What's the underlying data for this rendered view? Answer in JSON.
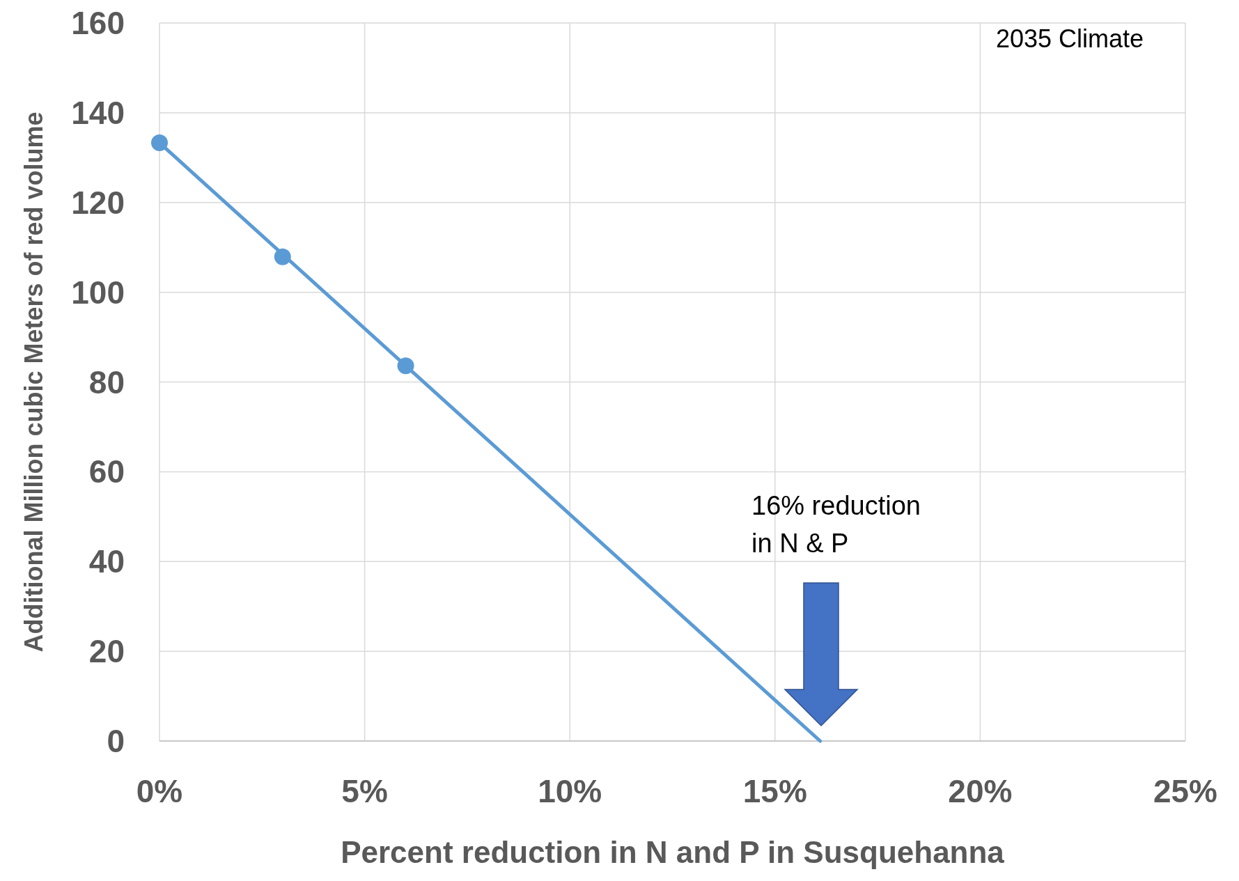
{
  "chart_data": {
    "type": "scatter",
    "xlabel": "Percent reduction in N and P in Susquehanna",
    "ylabel": "Additional Million cubic Meters of red volume",
    "series": [
      {
        "type": "line",
        "color": "#5b9bd5",
        "x": [
          0,
          16.1
        ],
        "values": [
          133.3,
          0
        ]
      },
      {
        "color": "#5b9bd5",
        "x": [
          0,
          3,
          6
        ],
        "values": [
          133.3,
          107.9,
          83.6
        ],
        "marker": "circle"
      }
    ],
    "xlim": [
      0,
      25
    ],
    "xticks": [
      {
        "value": 0,
        "label": "0%"
      },
      {
        "value": 5,
        "label": "5%"
      },
      {
        "value": 10,
        "label": "10%"
      },
      {
        "value": 15,
        "label": "15%"
      },
      {
        "value": 20,
        "label": "20%"
      },
      {
        "value": 25,
        "label": "25%"
      }
    ],
    "ylim": [
      0,
      160
    ],
    "yticks": [
      0,
      20,
      40,
      60,
      80,
      100,
      120,
      140,
      160
    ],
    "grid": true,
    "annotations": [
      "2035 Climate",
      "16% reduction\nin N & P"
    ]
  }
}
